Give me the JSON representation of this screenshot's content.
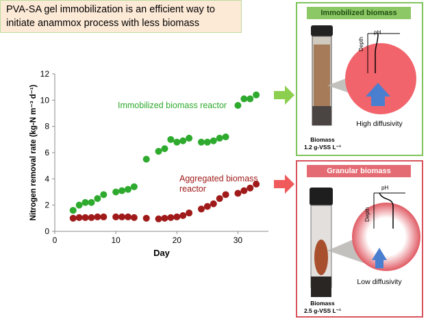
{
  "headline": "PVA-SA gel immobilization is an efficient way to initiate anammox process with less biomass",
  "chart_data": {
    "type": "scatter",
    "xlabel": "Day",
    "ylabel": "Nitrogen removal rate (kg-N m⁻³ d⁻¹)",
    "xlim": [
      0,
      35
    ],
    "ylim": [
      0,
      12
    ],
    "xticks": [
      "0",
      "10",
      "20",
      "30"
    ],
    "yticks": [
      "0",
      "2",
      "4",
      "6",
      "8",
      "10",
      "12"
    ],
    "grid": false,
    "series": [
      {
        "name": "Immobilized biomass reactor",
        "color": "#2eaa2e",
        "points": [
          [
            3,
            1.6
          ],
          [
            4,
            2.0
          ],
          [
            5,
            2.2
          ],
          [
            6,
            2.2
          ],
          [
            7,
            2.5
          ],
          [
            8,
            2.8
          ],
          [
            10,
            3.0
          ],
          [
            11,
            3.1
          ],
          [
            12,
            3.2
          ],
          [
            13,
            3.4
          ],
          [
            15,
            5.5
          ],
          [
            17,
            6.1
          ],
          [
            18,
            6.3
          ],
          [
            19,
            7.0
          ],
          [
            20,
            6.8
          ],
          [
            21,
            6.9
          ],
          [
            22,
            7.1
          ],
          [
            24,
            6.8
          ],
          [
            25,
            6.8
          ],
          [
            26,
            6.9
          ],
          [
            27,
            7.1
          ],
          [
            28,
            7.2
          ],
          [
            30,
            9.6
          ],
          [
            31,
            10.1
          ],
          [
            32,
            10.1
          ],
          [
            33,
            10.4
          ]
        ]
      },
      {
        "name": "Aggregated biomass reactor",
        "color": "#a01a1a",
        "points": [
          [
            3,
            1.0
          ],
          [
            4,
            1.05
          ],
          [
            5,
            1.05
          ],
          [
            6,
            1.05
          ],
          [
            7,
            1.1
          ],
          [
            8,
            1.1
          ],
          [
            10,
            1.1
          ],
          [
            11,
            1.1
          ],
          [
            12,
            1.1
          ],
          [
            13,
            1.05
          ],
          [
            15,
            1.0
          ],
          [
            17,
            0.95
          ],
          [
            18,
            1.0
          ],
          [
            19,
            1.05
          ],
          [
            20,
            1.1
          ],
          [
            21,
            1.2
          ],
          [
            22,
            1.4
          ],
          [
            24,
            1.7
          ],
          [
            25,
            1.9
          ],
          [
            26,
            2.1
          ],
          [
            27,
            2.5
          ],
          [
            28,
            2.8
          ],
          [
            30,
            2.9
          ],
          [
            31,
            3.1
          ],
          [
            32,
            3.3
          ],
          [
            33,
            3.6
          ]
        ]
      }
    ],
    "annotations": [
      {
        "text": "Immobilized biomass reactor",
        "color": "#2eaa2e"
      },
      {
        "text": "Aggregated biomass reactor",
        "color": "#a01a1a"
      }
    ]
  },
  "panels": {
    "immobilized": {
      "title": "Immobilized biomass",
      "biomass_label": "Biomass",
      "biomass_value": "1.2 g-VSS L⁻¹",
      "ph_label": "pH",
      "depth_label": "Depth",
      "diffusivity": "High diffusivity",
      "color": "#f2646c"
    },
    "granular": {
      "title": "Granular biomass",
      "biomass_label": "Biomass",
      "biomass_value": "2.5 g-VSS L⁻¹",
      "ph_label": "pH",
      "depth_label": "Depth",
      "diffusivity": "Low diffusivity",
      "color": "#e05a63"
    }
  }
}
